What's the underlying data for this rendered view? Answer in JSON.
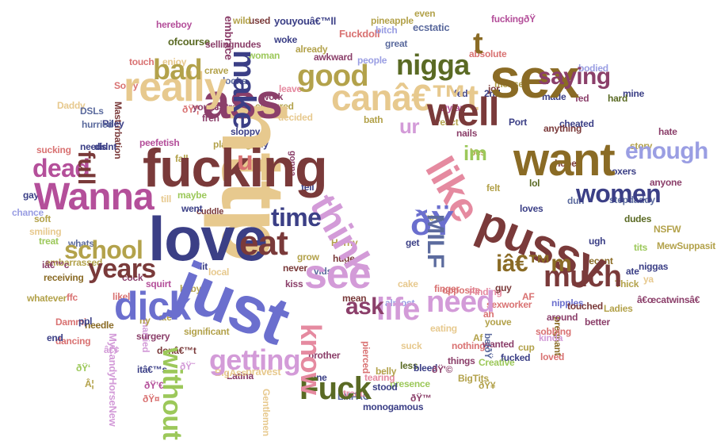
{
  "palette": {
    "sand": "#e7c98e",
    "wine": "#7a3a3a",
    "indigo": "#3b3f86",
    "periwinkle": "#6b6fce",
    "olive": "#8a6b25",
    "plum": "#8b3f6a",
    "pink": "#e58aa0",
    "lilac": "#d39bd8",
    "mauve": "#b44f9a",
    "khaki": "#b3a24b",
    "lime": "#9cc85a",
    "forest": "#5a6a24",
    "slate": "#5c6b9e",
    "salmon": "#d97272",
    "lavender": "#9a9ee3"
  },
  "words": [
    {
      "text": "http",
      "color": "sand"
    },
    {
      "text": "love",
      "color": "indigo"
    },
    {
      "text": "fucking",
      "color": "wine"
    },
    {
      "text": "just",
      "color": "periwinkle"
    },
    {
      "text": "sex",
      "color": "olive"
    },
    {
      "text": "want",
      "color": "olive"
    },
    {
      "text": "pussy",
      "color": "wine"
    },
    {
      "text": "canâ€™t",
      "color": "sand"
    },
    {
      "text": "ass",
      "color": "plum"
    },
    {
      "text": "really",
      "color": "sand"
    },
    {
      "text": "Wanna",
      "color": "mauve"
    },
    {
      "text": "think",
      "color": "lilac"
    },
    {
      "text": "like",
      "color": "pink"
    },
    {
      "text": "well",
      "color": "wine"
    },
    {
      "text": "dick",
      "color": "periwinkle"
    },
    {
      "text": "ðŸ",
      "color": "periwinkle"
    },
    {
      "text": "see",
      "color": "lilac"
    },
    {
      "text": "eat",
      "color": "wine"
    },
    {
      "text": "make",
      "color": "indigo"
    },
    {
      "text": "good",
      "color": "khaki"
    },
    {
      "text": "nigga",
      "color": "forest"
    },
    {
      "text": "saying",
      "color": "plum"
    },
    {
      "text": "bad",
      "color": "khaki"
    },
    {
      "text": "Fuck",
      "color": "forest"
    },
    {
      "text": "know",
      "color": "pink"
    },
    {
      "text": "life",
      "color": "lilac"
    },
    {
      "text": "need",
      "color": "lilac"
    },
    {
      "text": "much",
      "color": "wine"
    },
    {
      "text": "iâ€™m",
      "color": "olive"
    },
    {
      "text": "getting",
      "color": "lilac"
    },
    {
      "text": "without",
      "color": "lime"
    },
    {
      "text": "years",
      "color": "wine"
    },
    {
      "text": "school",
      "color": "khaki"
    },
    {
      "text": "time",
      "color": "indigo"
    },
    {
      "text": "dead",
      "color": "mauve"
    },
    {
      "text": "full",
      "color": "wine"
    },
    {
      "text": "women",
      "color": "indigo"
    },
    {
      "text": "enough",
      "color": "lavender"
    },
    {
      "text": "MILF",
      "color": "slate"
    },
    {
      "text": "ask",
      "color": "plum"
    },
    {
      "text": "u",
      "color": "salmon"
    },
    {
      "text": "t",
      "color": "olive"
    },
    {
      "text": "im",
      "color": "lime"
    },
    {
      "text": "ur",
      "color": "lilac"
    }
  ],
  "small_words": [
    {
      "text": "embrace",
      "color": "plum"
    },
    {
      "text": "youyouâ€™ll",
      "color": "indigo"
    },
    {
      "text": "Fuckdoll",
      "color": "salmon"
    },
    {
      "text": "fuckingðŸ",
      "color": "mauve"
    },
    {
      "text": "pineapple",
      "color": "khaki"
    },
    {
      "text": "ecstatic",
      "color": "slate"
    },
    {
      "text": "ofcourse",
      "color": "forest"
    },
    {
      "text": "sellingnudes",
      "color": "plum"
    },
    {
      "text": "Masturbation",
      "color": "wine"
    },
    {
      "text": "peefetish",
      "color": "mauve"
    },
    {
      "text": "stepdaddy",
      "color": "slate"
    },
    {
      "text": "boxers",
      "color": "indigo"
    },
    {
      "text": "cheated",
      "color": "indigo"
    },
    {
      "text": "hate",
      "color": "plum"
    },
    {
      "text": "MewSuppasit",
      "color": "khaki"
    },
    {
      "text": "sexworker",
      "color": "salmon"
    },
    {
      "text": "pregnant",
      "color": "olive"
    },
    {
      "text": "monogamous",
      "color": "indigo"
    },
    {
      "text": "Gentlemen",
      "color": "sand"
    },
    {
      "text": "presence",
      "color": "lime"
    },
    {
      "text": "LMFAO",
      "color": "slate"
    },
    {
      "text": "bravest",
      "color": "sand"
    },
    {
      "text": "Latina",
      "color": "plum"
    },
    {
      "text": "embarrassed",
      "color": "khaki"
    },
    {
      "text": "receiving",
      "color": "olive"
    },
    {
      "text": "whatever",
      "color": "khaki"
    },
    {
      "text": "significant",
      "color": "khaki"
    },
    {
      "text": "dancing",
      "color": "salmon"
    },
    {
      "text": "MyCandyHorseNew",
      "color": "lilac"
    },
    {
      "text": "awkward",
      "color": "plum"
    },
    {
      "text": "Thick",
      "color": "khaki"
    },
    {
      "text": "Ladies",
      "color": "khaki"
    },
    {
      "text": "nipples",
      "color": "periwinkle"
    },
    {
      "text": "touched",
      "color": "wine"
    },
    {
      "text": "better",
      "color": "plum"
    },
    {
      "text": "loved",
      "color": "salmon"
    },
    {
      "text": "brother",
      "color": "plum"
    },
    {
      "text": "tearing",
      "color": "pink"
    },
    {
      "text": "treats",
      "color": "pink"
    },
    {
      "text": "Dammi",
      "color": "salmon"
    },
    {
      "text": "needle",
      "color": "olive"
    },
    {
      "text": "married",
      "color": "lilac"
    },
    {
      "text": "surgery",
      "color": "plum"
    },
    {
      "text": "cuddle",
      "color": "wine"
    },
    {
      "text": "sloppy",
      "color": "indigo"
    },
    {
      "text": "coloured",
      "color": "khaki"
    },
    {
      "text": "decided",
      "color": "sand"
    },
    {
      "text": "bodied",
      "color": "lavender"
    },
    {
      "text": "bath",
      "color": "khaki"
    },
    {
      "text": "mine",
      "color": "indigo"
    },
    {
      "text": "anyone",
      "color": "plum"
    },
    {
      "text": "recent",
      "color": "olive"
    },
    {
      "text": "Riley",
      "color": "indigo"
    },
    {
      "text": "Sorry",
      "color": "salmon"
    },
    {
      "text": "hereboy",
      "color": "mauve"
    },
    {
      "text": "crave",
      "color": "khaki"
    },
    {
      "text": "woman",
      "color": "lime"
    },
    {
      "text": "enjoy",
      "color": "sand"
    },
    {
      "text": "touch",
      "color": "salmon"
    },
    {
      "text": "looks",
      "color": "slate"
    },
    {
      "text": "already",
      "color": "khaki"
    },
    {
      "text": "woke",
      "color": "indigo"
    },
    {
      "text": "gonna",
      "color": "plum"
    },
    {
      "text": "buy",
      "color": "indigo"
    },
    {
      "text": "work",
      "color": "plum"
    },
    {
      "text": "leave",
      "color": "pink"
    },
    {
      "text": "people",
      "color": "lavender"
    },
    {
      "text": "great",
      "color": "slate"
    },
    {
      "text": "even",
      "color": "khaki"
    },
    {
      "text": "Port",
      "color": "indigo"
    },
    {
      "text": "made",
      "color": "indigo"
    },
    {
      "text": "lol",
      "color": "forest"
    },
    {
      "text": "duh",
      "color": "slate"
    },
    {
      "text": "story",
      "color": "khaki"
    },
    {
      "text": "hard",
      "color": "forest"
    },
    {
      "text": "fed",
      "color": "plum"
    },
    {
      "text": "finger",
      "color": "salmon"
    },
    {
      "text": "suck",
      "color": "sand"
    },
    {
      "text": "eating",
      "color": "sand"
    },
    {
      "text": "around",
      "color": "plum"
    },
    {
      "text": "sobbing",
      "color": "salmon"
    },
    {
      "text": "fucked",
      "color": "indigo"
    },
    {
      "text": "things",
      "color": "plum"
    },
    {
      "text": "nothing",
      "color": "salmon"
    },
    {
      "text": "wanted",
      "color": "plum"
    },
    {
      "text": "youve",
      "color": "khaki"
    },
    {
      "text": "almost",
      "color": "lavender"
    },
    {
      "text": "cake",
      "color": "sand"
    },
    {
      "text": "mean",
      "color": "wine"
    },
    {
      "text": "kiss",
      "color": "plum"
    },
    {
      "text": "huge",
      "color": "wine"
    },
    {
      "text": "never",
      "color": "wine"
    },
    {
      "text": "baby",
      "color": "khaki"
    },
    {
      "text": "squirt",
      "color": "mauve"
    },
    {
      "text": "cock",
      "color": "plum"
    },
    {
      "text": "local",
      "color": "sand"
    },
    {
      "text": "ate",
      "color": "khaki"
    },
    {
      "text": "treat",
      "color": "lime"
    },
    {
      "text": "smiling",
      "color": "sand"
    },
    {
      "text": "whats",
      "color": "slate"
    },
    {
      "text": "soft",
      "color": "khaki"
    },
    {
      "text": "gay",
      "color": "indigo"
    },
    {
      "text": "chance",
      "color": "lavender"
    },
    {
      "text": "till",
      "color": "sand"
    },
    {
      "text": "went",
      "color": "indigo"
    },
    {
      "text": "fell",
      "color": "indigo"
    },
    {
      "text": "Horny",
      "color": "khaki"
    },
    {
      "text": "vids",
      "color": "slate"
    },
    {
      "text": "key",
      "color": "khaki"
    },
    {
      "text": "get",
      "color": "indigo"
    },
    {
      "text": "one",
      "color": "indigo"
    },
    {
      "text": "less",
      "color": "forest"
    },
    {
      "text": "belly",
      "color": "khaki"
    },
    {
      "text": "stood",
      "color": "indigo"
    },
    {
      "text": "pierced",
      "color": "salmon"
    },
    {
      "text": "opposite",
      "color": "salmon"
    },
    {
      "text": "Finding",
      "color": "pink"
    },
    {
      "text": "guy",
      "color": "wine"
    },
    {
      "text": "loves",
      "color": "indigo"
    },
    {
      "text": "felt",
      "color": "khaki"
    },
    {
      "text": "bes",
      "color": "khaki"
    },
    {
      "text": "nails",
      "color": "plum"
    },
    {
      "text": "react",
      "color": "khaki"
    },
    {
      "text": "Dylan",
      "color": "mauve"
    },
    {
      "text": "2nd",
      "color": "indigo"
    },
    {
      "text": "mense",
      "color": "khaki"
    },
    {
      "text": "absolute",
      "color": "salmon"
    },
    {
      "text": "anything",
      "color": "wine"
    },
    {
      "text": "dudes",
      "color": "forest"
    },
    {
      "text": "niggas",
      "color": "indigo"
    },
    {
      "text": "NSFW",
      "color": "khaki"
    },
    {
      "text": "bitch",
      "color": "lavender"
    },
    {
      "text": "planning",
      "color": "khaki"
    },
    {
      "text": "fren",
      "color": "plum"
    },
    {
      "text": "piss",
      "color": "plum"
    },
    {
      "text": "used",
      "color": "wine"
    },
    {
      "text": "wild",
      "color": "khaki"
    },
    {
      "text": "Daddy",
      "color": "sand"
    },
    {
      "text": "DSLs",
      "color": "slate"
    },
    {
      "text": "hurried",
      "color": "slate"
    },
    {
      "text": "didnt",
      "color": "indigo"
    },
    {
      "text": "needs",
      "color": "indigo"
    },
    {
      "text": "sucking",
      "color": "salmon"
    },
    {
      "text": "BigAss",
      "color": "sand"
    },
    {
      "text": "Creative",
      "color": "lime"
    },
    {
      "text": "BigTits",
      "color": "khaki"
    },
    {
      "text": "bleed",
      "color": "indigo"
    },
    {
      "text": "maybe",
      "color": "lime"
    },
    {
      "text": "fall",
      "color": "khaki"
    },
    {
      "text": "grow",
      "color": "khaki"
    },
    {
      "text": "end",
      "color": "indigo"
    },
    {
      "text": "cup",
      "color": "khaki"
    },
    {
      "text": "likely",
      "color": "salmon"
    },
    {
      "text": "ppl",
      "color": "indigo"
    },
    {
      "text": "lit",
      "color": "indigo"
    },
    {
      "text": "tits",
      "color": "lime"
    },
    {
      "text": "ate",
      "color": "indigo"
    },
    {
      "text": "hope",
      "color": "wine"
    },
    {
      "text": "ugh",
      "color": "indigo"
    },
    {
      "text": "ah",
      "color": "salmon"
    },
    {
      "text": "jor",
      "color": "wine"
    },
    {
      "text": "fed",
      "color": "indigo"
    },
    {
      "text": "AF",
      "color": "salmon"
    },
    {
      "text": "Af",
      "color": "khaki"
    },
    {
      "text": "ffc",
      "color": "salmon"
    },
    {
      "text": "ny",
      "color": "khaki"
    },
    {
      "text": "donâ€™t",
      "color": "wine"
    },
    {
      "text": "iâ€™c",
      "color": "plum"
    },
    {
      "text": "ðŸ’¦",
      "color": "salmon"
    },
    {
      "text": "â€¢",
      "color": "lilac"
    },
    {
      "text": "itâ€™s",
      "color": "indigo"
    },
    {
      "text": "ðŸ’€",
      "color": "mauve"
    },
    {
      "text": "ðŸ˜",
      "color": "lilac"
    },
    {
      "text": "youâ€™re",
      "color": "plum"
    },
    {
      "text": "ðŸ‘",
      "color": "lime"
    },
    {
      "text": "Â¦",
      "color": "khaki"
    },
    {
      "text": "ðŸ™",
      "color": "plum"
    },
    {
      "text": "ðŸ¤",
      "color": "salmon"
    },
    {
      "text": "ðŸ'©",
      "color": "plum"
    },
    {
      "text": "ðŸ¥",
      "color": "khaki"
    },
    {
      "text": "ya",
      "color": "sand"
    },
    {
      "text": "kinda",
      "color": "lilac"
    },
    {
      "text": "â€œcatwinsâ€",
      "color": "plum"
    },
    {
      "text": "betðŸ",
      "color": "slate"
    },
    {
      "text": "mad",
      "color": "plum"
    },
    {
      "text": "â€™all",
      "color": "lilac"
    },
    {
      "text": "ðŸ˜‚",
      "color": "plum"
    },
    {
      "text": "ghetto",
      "color": "indigo"
    }
  ]
}
